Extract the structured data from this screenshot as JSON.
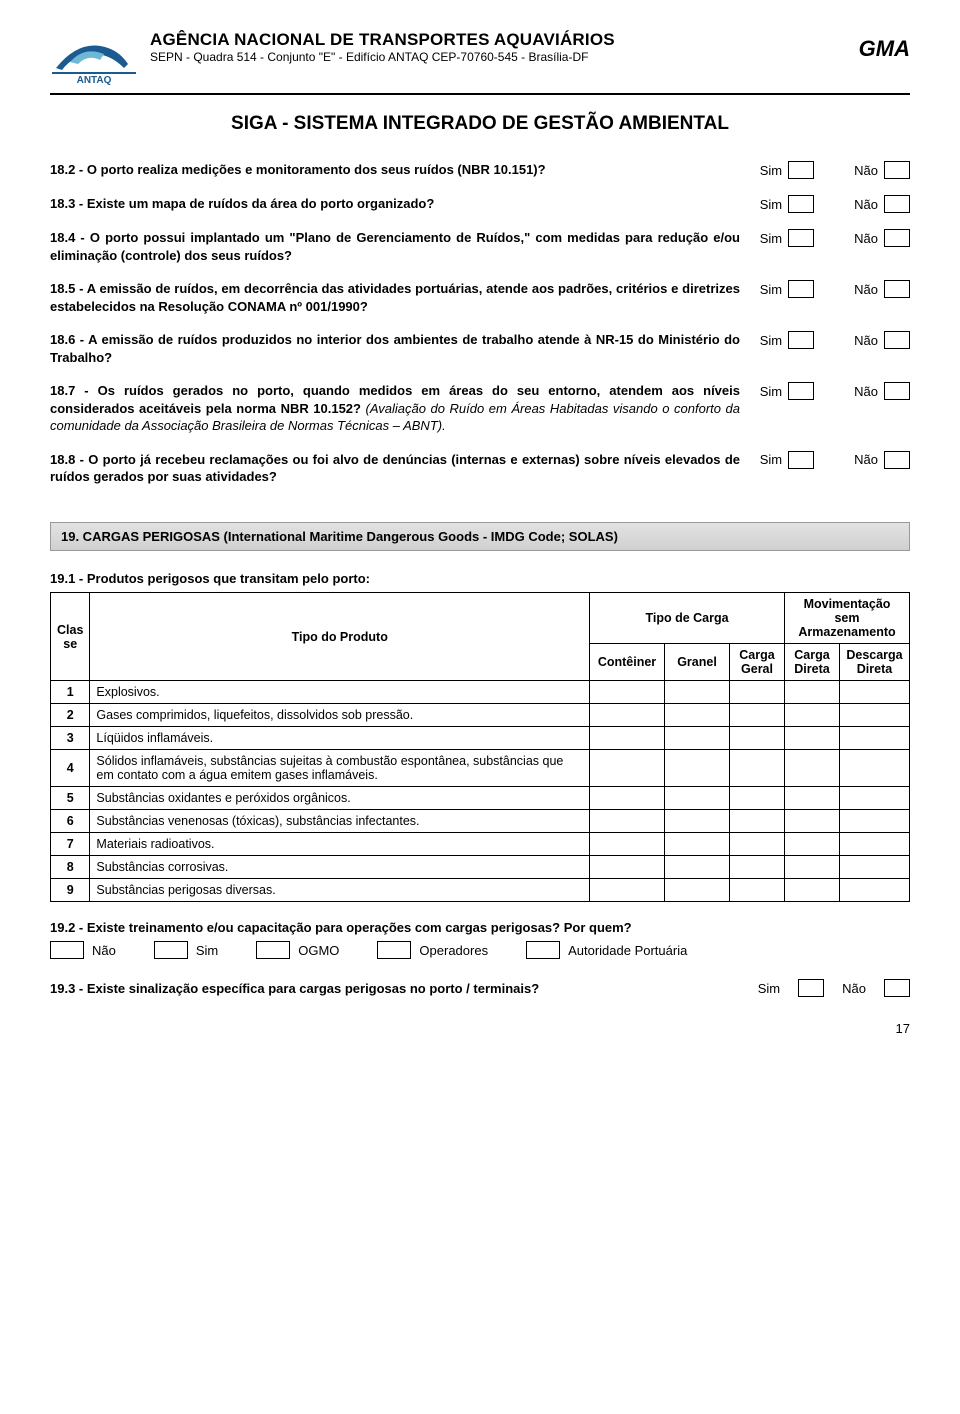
{
  "header": {
    "agency_title": "AGÊNCIA NACIONAL DE TRANSPORTES AQUAVIÁRIOS",
    "agency_sub": "SEPN - Quadra 514 - Conjunto \"E\" - Edifício ANTAQ CEP-70760-545 - Brasília-DF",
    "gma": "GMA",
    "logo_text": "ANTAQ"
  },
  "siga_title": "SIGA - SISTEMA INTEGRADO DE GESTÃO AMBIENTAL",
  "labels": {
    "sim": "Sim",
    "nao": "Não"
  },
  "questions": [
    {
      "num": "18.2",
      "text": "O porto realiza medições e monitoramento dos seus ruídos (NBR 10.151)?"
    },
    {
      "num": "18.3",
      "text": "Existe um mapa de ruídos da área do porto organizado?"
    },
    {
      "num": "18.4",
      "text": "O porto possui implantado um \"Plano de Gerenciamento de Ruídos,\" com medidas para redução e/ou eliminação (controle) dos seus ruídos?"
    },
    {
      "num": "18.5",
      "text": "A emissão de ruídos, em decorrência das atividades portuárias, atende aos padrões, critérios e diretrizes estabelecidos na Resolução CONAMA nº 001/1990?"
    },
    {
      "num": "18.6",
      "text": "A emissão de ruídos produzidos no interior dos ambientes de trabalho atende à NR-15 do Ministério do Trabalho?"
    },
    {
      "num": "18.7",
      "text": "Os ruídos gerados no porto, quando medidos em áreas do seu entorno, atendem aos níveis considerados aceitáveis pela norma NBR 10.152?",
      "italic": " (Avaliação do Ruído em Áreas Habitadas visando o conforto da comunidade da Associação Brasileira de Normas Técnicas – ABNT)."
    },
    {
      "num": "18.8",
      "text": "O porto já recebeu reclamações  ou foi alvo de denúncias (internas e externas) sobre níveis elevados de ruídos gerados por suas atividades?"
    }
  ],
  "section19": {
    "title": "19.  CARGAS PERIGOSAS (International Maritime Dangerous Goods - IMDG Code; SOLAS)",
    "sub": "19.1 -  Produtos perigosos que transitam pelo porto:",
    "headers": {
      "classe": "Clas se",
      "tipo_produto": "Tipo do Produto",
      "tipo_carga": "Tipo de Carga",
      "mov": "Movimentação sem Armazenamento",
      "conteiner": "Contêiner",
      "granel": "Granel",
      "carga_geral": "Carga Geral",
      "carga_direta": "Carga Direta",
      "descarga_direta": "Descarga Direta"
    },
    "rows": [
      {
        "n": "1",
        "p": "Explosivos."
      },
      {
        "n": "2",
        "p": "Gases comprimidos, liquefeitos, dissolvidos sob pressão."
      },
      {
        "n": "3",
        "p": "Líqüidos inflamáveis."
      },
      {
        "n": "4",
        "p": "Sólidos inflamáveis, substâncias sujeitas à combustão espontânea, substâncias que em contato com a água emitem gases inflamáveis."
      },
      {
        "n": "5",
        "p": "Substâncias oxidantes e peróxidos orgânicos."
      },
      {
        "n": "6",
        "p": "Substâncias venenosas (tóxicas), substâncias infectantes."
      },
      {
        "n": "7",
        "p": "Materiais radioativos."
      },
      {
        "n": "8",
        "p": "Substâncias corrosivas."
      },
      {
        "n": "9",
        "p": "Substâncias perigosas diversas."
      }
    ]
  },
  "q192": {
    "text": "19.2 - Existe treinamento e/ou capacitação para operações com cargas perigosas? Por quem?",
    "opts": [
      "Não",
      "Sim",
      "OGMO",
      "Operadores",
      "Autoridade Portuária"
    ]
  },
  "q193": {
    "text": "19.3 - Existe sinalização específica para cargas perigosas no porto / terminais?"
  },
  "page_number": "17"
}
